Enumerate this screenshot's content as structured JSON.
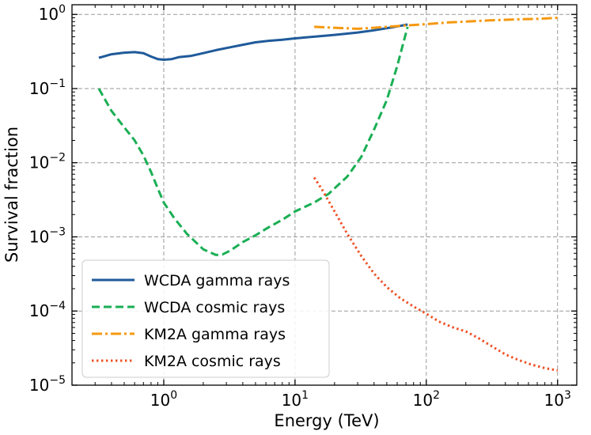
{
  "chart_data": {
    "type": "line",
    "xscale": "log",
    "yscale": "log",
    "xlabel": "Energy (TeV)",
    "ylabel": "Survival fraction",
    "xlim": [
      0.2,
      1400
    ],
    "ylim": [
      1e-05,
      1.35
    ],
    "grid": true,
    "legend_position": "lower-left",
    "x_ticks": [
      {
        "value": 1,
        "base": "10",
        "exp": "0"
      },
      {
        "value": 10,
        "base": "10",
        "exp": "1"
      },
      {
        "value": 100,
        "base": "10",
        "exp": "2"
      },
      {
        "value": 1000,
        "base": "10",
        "exp": "3"
      }
    ],
    "y_ticks": [
      {
        "value": 1e-05,
        "base": "10",
        "exp": "−5"
      },
      {
        "value": 0.0001,
        "base": "10",
        "exp": "−4"
      },
      {
        "value": 0.001,
        "base": "10",
        "exp": "−3"
      },
      {
        "value": 0.01,
        "base": "10",
        "exp": "−2"
      },
      {
        "value": 0.1,
        "base": "10",
        "exp": "−1"
      },
      {
        "value": 1,
        "base": "10",
        "exp": "0"
      }
    ],
    "series": [
      {
        "name": "WCDA gamma rays",
        "color": "#1f5a9a",
        "dash": "solid",
        "x": [
          0.32,
          0.4,
          0.5,
          0.6,
          0.7,
          0.8,
          0.9,
          1.0,
          1.15,
          1.3,
          1.6,
          2.0,
          2.5,
          3.2,
          4.0,
          5.0,
          6.3,
          8.0,
          10,
          14,
          20,
          30,
          40,
          55,
          72
        ],
        "values": [
          0.26,
          0.29,
          0.305,
          0.31,
          0.3,
          0.27,
          0.25,
          0.245,
          0.25,
          0.265,
          0.275,
          0.3,
          0.33,
          0.36,
          0.39,
          0.42,
          0.44,
          0.455,
          0.475,
          0.5,
          0.53,
          0.57,
          0.61,
          0.67,
          0.73
        ]
      },
      {
        "name": "WCDA cosmic rays",
        "color": "#1aaf54",
        "dash": "dashed",
        "x": [
          0.32,
          0.4,
          0.5,
          0.6,
          0.7,
          0.8,
          0.9,
          1.0,
          1.2,
          1.5,
          2.0,
          2.5,
          2.8,
          3.2,
          4.0,
          5.0,
          6.3,
          8.0,
          10,
          14,
          18,
          25,
          32,
          40,
          50,
          60,
          72
        ],
        "values": [
          0.1,
          0.05,
          0.03,
          0.02,
          0.0125,
          0.0075,
          0.0045,
          0.0029,
          0.0018,
          0.0011,
          0.00068,
          0.00057,
          0.00058,
          0.00065,
          0.00085,
          0.00105,
          0.00135,
          0.0017,
          0.0022,
          0.0029,
          0.0038,
          0.0065,
          0.012,
          0.028,
          0.07,
          0.2,
          0.68
        ]
      },
      {
        "name": "KM2A gamma rays",
        "color": "#f5980f",
        "dash": "dashdot",
        "x": [
          14,
          20,
          30,
          40,
          50,
          70,
          100,
          150,
          200,
          300,
          500,
          700,
          1000
        ],
        "values": [
          0.68,
          0.66,
          0.64,
          0.66,
          0.68,
          0.71,
          0.74,
          0.78,
          0.8,
          0.83,
          0.86,
          0.87,
          0.9
        ]
      },
      {
        "name": "KM2A cosmic rays",
        "color": "#ee4f22",
        "dash": "dotted",
        "x": [
          14,
          16,
          20,
          25,
          32,
          40,
          50,
          63,
          80,
          100,
          125,
          160,
          200,
          250,
          320,
          400,
          500,
          630,
          800,
          1000
        ],
        "values": [
          0.0063,
          0.0044,
          0.0022,
          0.0011,
          0.00055,
          0.00032,
          0.00021,
          0.00015,
          0.000115,
          9.2e-05,
          7.2e-05,
          6e-05,
          5.3e-05,
          4.3e-05,
          3.3e-05,
          2.6e-05,
          2.2e-05,
          1.9e-05,
          1.7e-05,
          1.58e-05
        ]
      }
    ]
  }
}
